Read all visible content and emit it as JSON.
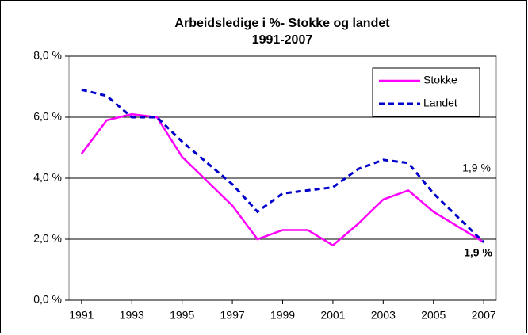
{
  "chart_data": {
    "type": "line",
    "title": [
      "Arbeidsledige i %- Stokke og landet",
      "1991-2007"
    ],
    "x": [
      1991,
      1992,
      1993,
      1994,
      1995,
      1996,
      1997,
      1998,
      1999,
      2000,
      2001,
      2002,
      2003,
      2004,
      2005,
      2006,
      2007
    ],
    "series": [
      {
        "name": "Stokke",
        "color": "#ff00ff",
        "values": [
          4.8,
          5.9,
          6.1,
          6.0,
          4.7,
          3.9,
          3.1,
          2.0,
          2.3,
          2.3,
          1.8,
          2.5,
          3.3,
          3.6,
          2.9,
          2.4,
          1.9
        ]
      },
      {
        "name": "Landet",
        "color": "#0000cc",
        "values": [
          6.9,
          6.7,
          6.0,
          6.0,
          5.2,
          4.5,
          3.8,
          2.9,
          3.5,
          3.6,
          3.7,
          4.3,
          4.6,
          4.5,
          3.5,
          2.7,
          1.9
        ]
      }
    ],
    "xlim": [
      1990.5,
      2007.5
    ],
    "xticks": [
      1991,
      1993,
      1995,
      1997,
      1999,
      2001,
      2003,
      2005,
      2007
    ],
    "ylim": [
      0,
      8
    ],
    "yticks": [
      {
        "value": 0,
        "label": "0,0 %"
      },
      {
        "value": 2,
        "label": "2,0 %"
      },
      {
        "value": 4,
        "label": "4,0 %"
      },
      {
        "value": 6,
        "label": "6,0 %"
      },
      {
        "value": 8,
        "label": "8,0 %"
      }
    ],
    "grid": true,
    "legend": "upper right",
    "annotations": [
      "1,9 %",
      "1,9 %"
    ]
  }
}
